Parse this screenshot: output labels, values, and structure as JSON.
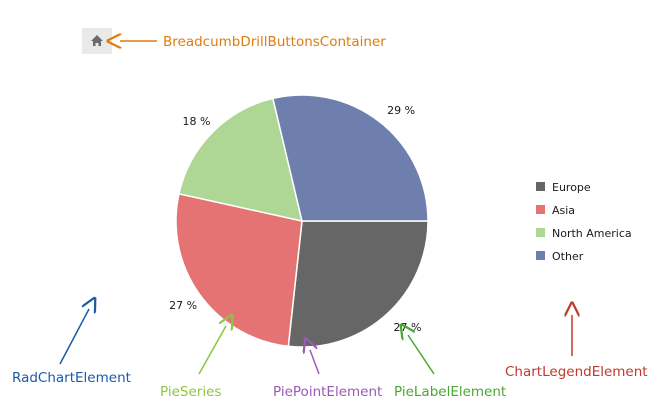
{
  "chart_data": {
    "type": "pie",
    "series": [
      {
        "name": "Europe",
        "value": 27,
        "label": "27 %",
        "color": "#666666"
      },
      {
        "name": "Asia",
        "value": 27,
        "label": "27 %",
        "color": "#e57373"
      },
      {
        "name": "North America",
        "value": 18,
        "label": "18 %",
        "color": "#aed694"
      },
      {
        "name": "Other",
        "value": 29,
        "label": "29 %",
        "color": "#6f7fad"
      }
    ],
    "legend_position": "right"
  },
  "breadcrumb": {
    "home_icon": "home-icon"
  },
  "annotations": {
    "breadcrumb": {
      "text": "BreadcumbDrillButtonsContainer",
      "color": "#e07b10"
    },
    "chart_element": {
      "text": "RadChartElement",
      "color": "#1a5aa8"
    },
    "pie_series": {
      "text": "PieSeries",
      "color": "#8cc63f"
    },
    "pie_point": {
      "text": "PiePointElement",
      "color": "#9b59b6"
    },
    "pie_label": {
      "text": "PieLabelElement",
      "color": "#4aa832"
    },
    "legend": {
      "text": "ChartLegendElement",
      "color": "#c0392b"
    }
  }
}
